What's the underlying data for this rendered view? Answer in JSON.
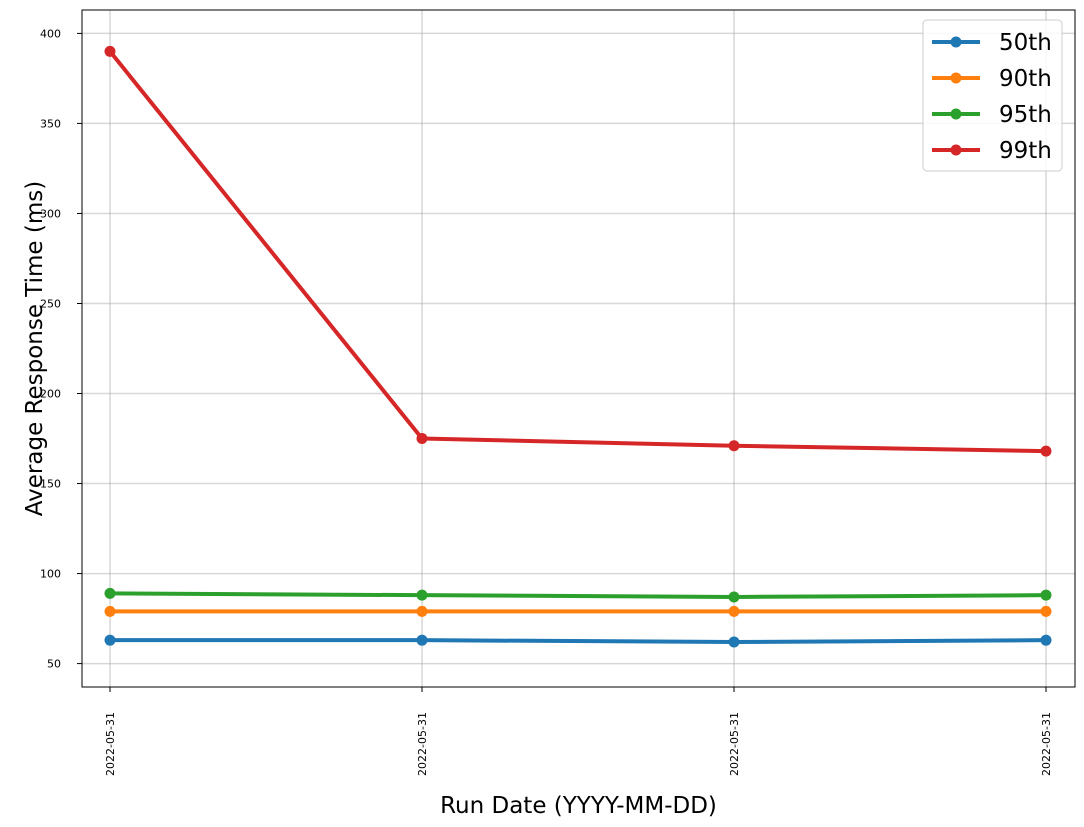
{
  "chart_data": {
    "type": "line",
    "title": "",
    "xlabel": "Run Date (YYYY-MM-DD)",
    "ylabel": "Average Response Time (ms)",
    "categories": [
      "2022-05-31",
      "2022-05-31",
      "2022-05-31",
      "2022-05-31"
    ],
    "ylim": [
      37,
      413
    ],
    "yticks": [
      50,
      100,
      150,
      200,
      250,
      300,
      350,
      400
    ],
    "grid": true,
    "legend_position": "top-right",
    "series": [
      {
        "name": "50th",
        "color": "#1f77b4",
        "values": [
          63,
          63,
          62,
          63
        ]
      },
      {
        "name": "90th",
        "color": "#ff7f0e",
        "values": [
          79,
          79,
          79,
          79
        ]
      },
      {
        "name": "95th",
        "color": "#2ca02c",
        "values": [
          89,
          88,
          87,
          88
        ]
      },
      {
        "name": "99th",
        "color": "#d62728",
        "values": [
          390,
          175,
          171,
          168
        ]
      }
    ]
  }
}
